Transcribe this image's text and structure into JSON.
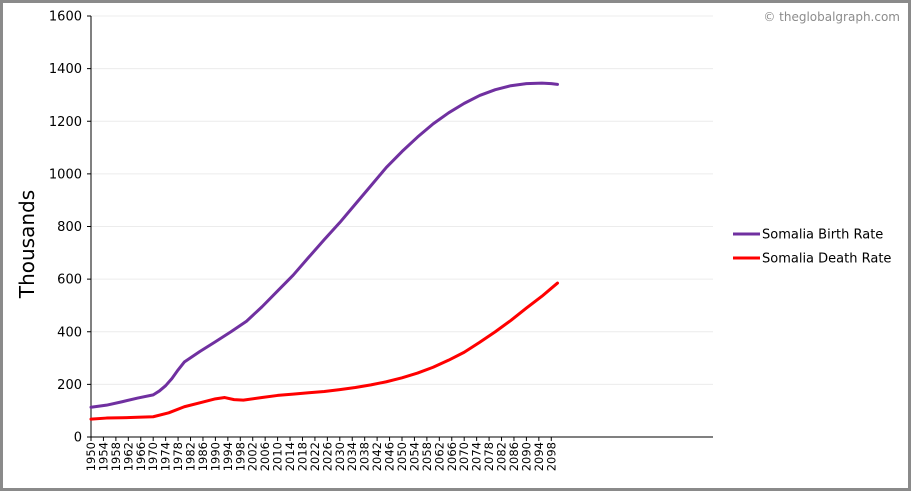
{
  "credit": "© theglobalgraph.com",
  "chart_data": {
    "type": "line",
    "ylabel": "Thousands",
    "ylim": [
      0,
      1600
    ],
    "yticks": [
      0,
      200,
      400,
      600,
      800,
      1000,
      1200,
      1400,
      1600
    ],
    "xlim": [
      1950,
      2150
    ],
    "xticks": [
      1950,
      1954,
      1958,
      1962,
      1966,
      1970,
      1974,
      1978,
      1982,
      1986,
      1990,
      1994,
      1998,
      2002,
      2006,
      2010,
      2014,
      2018,
      2022,
      2026,
      2030,
      2034,
      2038,
      2042,
      2046,
      2050,
      2054,
      2058,
      2062,
      2066,
      2070,
      2074,
      2078,
      2082,
      2086,
      2090,
      2094,
      2098
    ],
    "grid": true,
    "legend_position": "right",
    "series": [
      {
        "name": "Somalia Birth Rate",
        "color": "#7030a0",
        "points": [
          [
            1950,
            113
          ],
          [
            1955,
            121
          ],
          [
            1960,
            134
          ],
          [
            1965,
            148
          ],
          [
            1970,
            160
          ],
          [
            1972,
            175
          ],
          [
            1974,
            195
          ],
          [
            1976,
            222
          ],
          [
            1978,
            255
          ],
          [
            1980,
            285
          ],
          [
            1985,
            325
          ],
          [
            1990,
            362
          ],
          [
            1995,
            400
          ],
          [
            2000,
            440
          ],
          [
            2005,
            495
          ],
          [
            2010,
            555
          ],
          [
            2015,
            615
          ],
          [
            2020,
            683
          ],
          [
            2025,
            750
          ],
          [
            2030,
            815
          ],
          [
            2035,
            885
          ],
          [
            2040,
            955
          ],
          [
            2045,
            1025
          ],
          [
            2050,
            1085
          ],
          [
            2055,
            1140
          ],
          [
            2060,
            1190
          ],
          [
            2065,
            1232
          ],
          [
            2070,
            1268
          ],
          [
            2075,
            1298
          ],
          [
            2080,
            1320
          ],
          [
            2085,
            1335
          ],
          [
            2090,
            1343
          ],
          [
            2095,
            1345
          ],
          [
            2098,
            1343
          ],
          [
            2100,
            1340
          ]
        ]
      },
      {
        "name": "Somalia Death Rate",
        "color": "#ff0000",
        "points": [
          [
            1950,
            68
          ],
          [
            1955,
            72
          ],
          [
            1960,
            73
          ],
          [
            1965,
            75
          ],
          [
            1970,
            77
          ],
          [
            1975,
            92
          ],
          [
            1980,
            115
          ],
          [
            1985,
            130
          ],
          [
            1990,
            145
          ],
          [
            1993,
            150
          ],
          [
            1996,
            142
          ],
          [
            1999,
            140
          ],
          [
            2005,
            150
          ],
          [
            2010,
            158
          ],
          [
            2015,
            163
          ],
          [
            2020,
            168
          ],
          [
            2025,
            173
          ],
          [
            2030,
            180
          ],
          [
            2035,
            188
          ],
          [
            2040,
            198
          ],
          [
            2045,
            210
          ],
          [
            2050,
            225
          ],
          [
            2055,
            243
          ],
          [
            2060,
            265
          ],
          [
            2065,
            292
          ],
          [
            2070,
            322
          ],
          [
            2075,
            360
          ],
          [
            2080,
            400
          ],
          [
            2085,
            443
          ],
          [
            2090,
            490
          ],
          [
            2095,
            535
          ],
          [
            2098,
            565
          ],
          [
            2100,
            585
          ]
        ]
      }
    ]
  }
}
